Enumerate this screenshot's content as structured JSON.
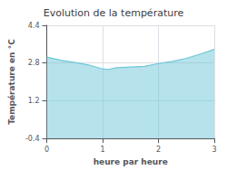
{
  "chart_data": {
    "type": "area",
    "title": "Evolution de la température",
    "x_label": "heure par heure",
    "y_label": "Température en °C",
    "x": [
      0,
      0.25,
      0.5,
      0.75,
      1.0,
      1.1,
      1.25,
      1.5,
      1.75,
      2.0,
      2.25,
      2.5,
      2.75,
      3.0
    ],
    "values": [
      3.05,
      2.92,
      2.82,
      2.72,
      2.55,
      2.53,
      2.6,
      2.63,
      2.66,
      2.78,
      2.87,
      3.0,
      3.18,
      3.38
    ],
    "color": "#6ec6d8",
    "xlim": [
      0,
      3
    ],
    "xticks": [
      0,
      1,
      2,
      3
    ],
    "ylim": [
      -0.4,
      4.4
    ],
    "yticks": [
      -0.4,
      1.2,
      2.8,
      4.4
    ],
    "grid": true
  }
}
